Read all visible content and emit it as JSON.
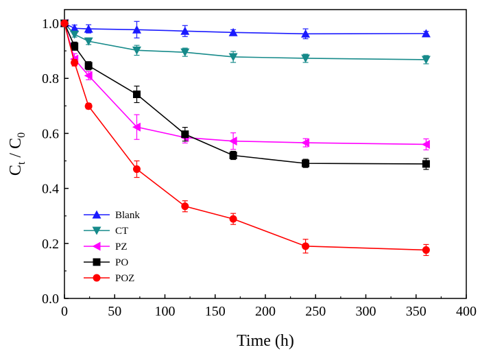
{
  "chart_data": {
    "type": "line",
    "xlabel": "Time (h)",
    "ylabel": {
      "main": "C",
      "sub1": "t",
      "sep": " / C",
      "sub2": "0"
    },
    "xlim": [
      0,
      400
    ],
    "ylim": [
      0.0,
      1.05
    ],
    "xticks": [
      0,
      50,
      100,
      150,
      200,
      250,
      300,
      350,
      400
    ],
    "yticks": [
      0.0,
      0.2,
      0.4,
      0.6,
      0.8,
      1.0
    ],
    "legend_position": "bottom-left",
    "grid": false,
    "x": [
      0,
      10,
      24,
      72,
      120,
      168,
      240,
      360
    ],
    "series": [
      {
        "name": "Blank",
        "color": "#1a1aff",
        "marker": "triangle-up",
        "values": [
          1.0,
          0.982,
          0.98,
          0.977,
          0.972,
          0.967,
          0.962,
          0.963
        ],
        "errors": [
          0,
          0.012,
          0.015,
          0.03,
          0.02,
          0.01,
          0.018,
          0.008
        ]
      },
      {
        "name": "CT",
        "color": "#168a8a",
        "marker": "triangle-down",
        "values": [
          1.0,
          0.96,
          0.935,
          0.902,
          0.895,
          0.878,
          0.873,
          0.868
        ],
        "errors": [
          0,
          0.01,
          0.012,
          0.018,
          0.015,
          0.02,
          0.015,
          0.015
        ]
      },
      {
        "name": "PZ",
        "color": "#ff00ff",
        "marker": "triangle-left",
        "values": [
          1.0,
          0.87,
          0.81,
          0.623,
          0.585,
          0.572,
          0.566,
          0.56
        ],
        "errors": [
          0,
          0.02,
          0.015,
          0.045,
          0.02,
          0.03,
          0.015,
          0.02
        ]
      },
      {
        "name": "PO",
        "color": "#000000",
        "marker": "square",
        "values": [
          1.0,
          0.917,
          0.846,
          0.742,
          0.597,
          0.52,
          0.491,
          0.489
        ],
        "errors": [
          0,
          0.015,
          0.015,
          0.03,
          0.025,
          0.015,
          0.015,
          0.02
        ]
      },
      {
        "name": "POZ",
        "color": "#ff0000",
        "marker": "circle",
        "values": [
          1.0,
          0.857,
          0.699,
          0.47,
          0.335,
          0.289,
          0.19,
          0.176
        ],
        "errors": [
          0,
          0.012,
          0.01,
          0.03,
          0.02,
          0.02,
          0.025,
          0.02
        ]
      }
    ]
  }
}
